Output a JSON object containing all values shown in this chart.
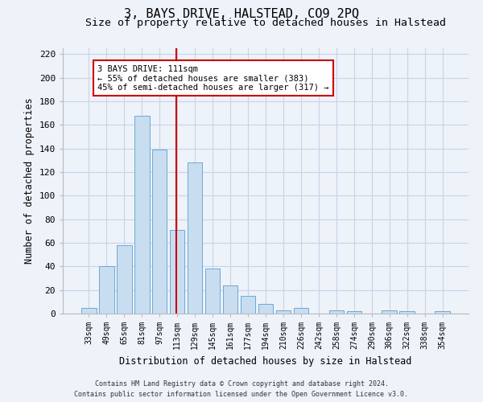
{
  "title": "3, BAYS DRIVE, HALSTEAD, CO9 2PQ",
  "subtitle": "Size of property relative to detached houses in Halstead",
  "xlabel": "Distribution of detached houses by size in Halstead",
  "ylabel": "Number of detached properties",
  "categories": [
    "33sqm",
    "49sqm",
    "65sqm",
    "81sqm",
    "97sqm",
    "113sqm",
    "129sqm",
    "145sqm",
    "161sqm",
    "177sqm",
    "194sqm",
    "210sqm",
    "226sqm",
    "242sqm",
    "258sqm",
    "274sqm",
    "290sqm",
    "306sqm",
    "322sqm",
    "338sqm",
    "354sqm"
  ],
  "values": [
    5,
    40,
    58,
    168,
    139,
    71,
    128,
    38,
    24,
    15,
    8,
    3,
    5,
    0,
    3,
    2,
    0,
    3,
    2,
    0,
    2
  ],
  "bar_color": "#c9ddf0",
  "bar_edge_color": "#6aaad4",
  "grid_color": "#c8d4e8",
  "background_color": "#eef2f9",
  "marker_line_color": "#cc0000",
  "annotation_box_color": "#ffffff",
  "annotation_box_edge": "#cc0000",
  "ylim": [
    0,
    225
  ],
  "yticks": [
    0,
    20,
    40,
    60,
    80,
    100,
    120,
    140,
    160,
    180,
    200,
    220
  ],
  "footnote1": "Contains HM Land Registry data © Crown copyright and database right 2024.",
  "footnote2": "Contains public sector information licensed under the Open Government Licence v3.0."
}
